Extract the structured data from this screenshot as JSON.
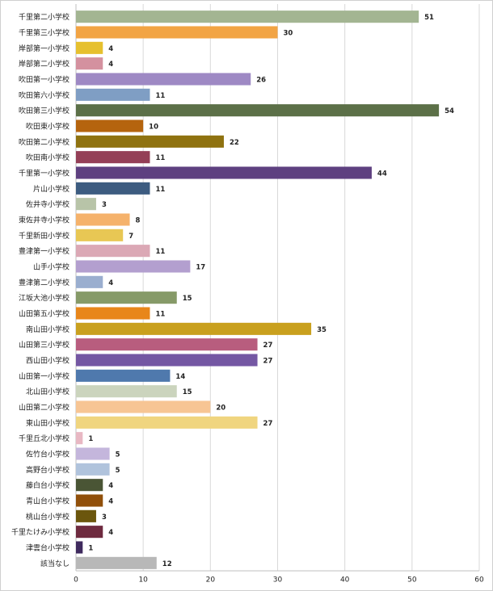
{
  "chart_data": {
    "type": "barh",
    "categories": [
      "千里第二小学校",
      "千里第三小学校",
      "岸部第一小学校",
      "岸部第二小学校",
      "吹田第一小学校",
      "吹田第六小学校",
      "吹田第三小学校",
      "吹田東小学校",
      "吹田第二小学校",
      "吹田南小学校",
      "千里第一小学校",
      "片山小学校",
      "佐井寺小学校",
      "東佐井寺小学校",
      "千里新田小学校",
      "豊津第一小学校",
      "山手小学校",
      "豊津第二小学校",
      "江坂大池小学校",
      "山田第五小学校",
      "南山田小学校",
      "山田第三小学校",
      "西山田小学校",
      "山田第一小学校",
      "北山田小学校",
      "山田第二小学校",
      "東山田小学校",
      "千里丘北小学校",
      "佐竹台小学校",
      "高野台小学校",
      "藤白台小学校",
      "青山台小学校",
      "桃山台小学校",
      "千里たけみ小学校",
      "津雲台小学校",
      "該当なし"
    ],
    "values": [
      51,
      30,
      4,
      4,
      26,
      11,
      54,
      10,
      22,
      11,
      44,
      11,
      3,
      8,
      7,
      11,
      17,
      4,
      15,
      11,
      35,
      27,
      27,
      14,
      15,
      20,
      27,
      1,
      5,
      5,
      4,
      4,
      3,
      4,
      1,
      12
    ],
    "colors": [
      "#a3b592",
      "#f2a444",
      "#e6c02e",
      "#d4919f",
      "#9e89c4",
      "#7f9ec4",
      "#5c7048",
      "#b5640e",
      "#8f7210",
      "#943f57",
      "#5e4080",
      "#3d5c80",
      "#b8c4a8",
      "#f5b26b",
      "#e8c754",
      "#dba8b5",
      "#b39fcf",
      "#9aaecf",
      "#869a68",
      "#e8861a",
      "#c9a01e",
      "#b85d7e",
      "#7457a3",
      "#4f79ad",
      "#cbd4bd",
      "#f7c594",
      "#f0d57f",
      "#e8b8c3",
      "#c4b6dc",
      "#b0c3dc",
      "#4a5535",
      "#91500a",
      "#6b560d",
      "#6e2a3f",
      "#3f2a5e",
      "#b8b8b8"
    ],
    "xlim": [
      0,
      60
    ],
    "xticks": [
      0,
      10,
      20,
      30,
      40,
      50,
      60
    ],
    "grid": true
  }
}
